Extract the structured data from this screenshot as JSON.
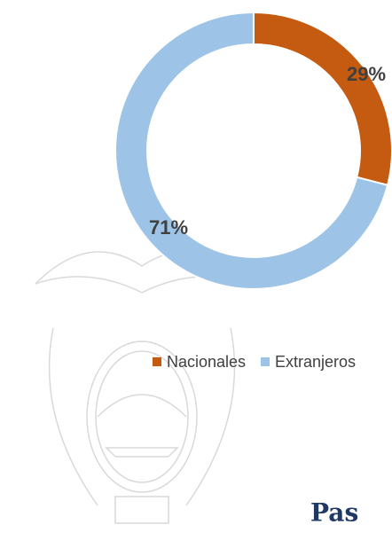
{
  "chart_data": {
    "type": "donut",
    "categories": [
      "Nacionales",
      "Extranjeros"
    ],
    "values": [
      29,
      71
    ],
    "value_labels": [
      "29%",
      "71%"
    ],
    "colors": [
      "#c55a11",
      "#9dc3e6"
    ],
    "legend": "bottom",
    "annotations": [
      "Pas"
    ]
  }
}
